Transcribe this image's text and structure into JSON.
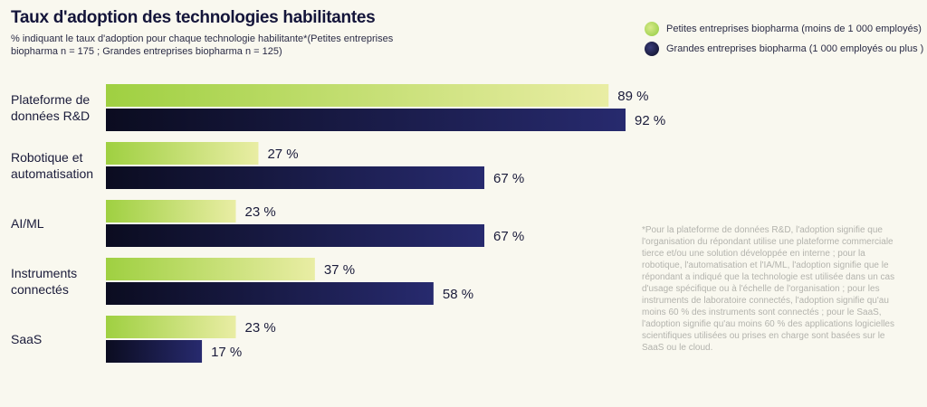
{
  "title": "Taux d'adoption des technologies habilitantes",
  "subtitle": "% indiquant le taux d'adoption pour chaque technologie habilitante*(Petites entreprises biopharma n = 175 ; Grandes entreprises biopharma n = 125)",
  "note": "*Pour la plateforme de données R&D, l'adoption signifie que l'organisation du répondant utilise une plateforme commerciale tierce et/ou une solution développée en interne ; pour la robotique, l'automatisation et l'IA/ML, l'adoption signifie que le répondant a indiqué que la technologie est utilisée dans un cas d'usage spécifique ou à l'échelle de l'organisation ; pour les instruments de laboratoire connectés, l'adoption signifie qu'au moins 60 % des instruments sont connectés ; pour le SaaS, l'adoption signifie qu'au moins 60 % des applications logicielles scientifiques utilisées ou prises en charge sont basées sur le SaaS ou le cloud.",
  "colors": {
    "small_start": "#9fd041",
    "small_end": "#e9eda4",
    "large_start": "#0b0c20",
    "large_end": "#272a6e",
    "background": "#f9f8ef"
  },
  "chart_data": {
    "type": "bar",
    "orientation": "horizontal",
    "unit": "%",
    "categories": [
      [
        "Plateforme de",
        "données R&D"
      ],
      [
        "Robotique et",
        "automatisation"
      ],
      [
        "AI/ML"
      ],
      [
        "Instruments",
        "connectés"
      ],
      [
        "SaaS"
      ]
    ],
    "series": [
      {
        "name": "Petites entreprises biopharma (moins de 1 000 employés)",
        "values": [
          89,
          27,
          23,
          37,
          23
        ],
        "labels": [
          "89 %",
          "27 %",
          "23 %",
          "37 %",
          "23 %"
        ]
      },
      {
        "name": "Grandes entreprises biopharma (1 000 employés ou plus )",
        "values": [
          92,
          67,
          67,
          58,
          17
        ],
        "labels": [
          "92 %",
          "67 %",
          "67 %",
          "58 %",
          "17 %"
        ]
      }
    ],
    "xlim": [
      0,
      100
    ],
    "grid": false,
    "legend": "top-right"
  }
}
